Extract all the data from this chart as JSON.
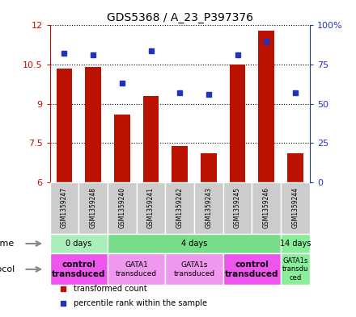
{
  "title": "GDS5368 / A_23_P397376",
  "samples": [
    "GSM1359247",
    "GSM1359248",
    "GSM1359240",
    "GSM1359241",
    "GSM1359242",
    "GSM1359243",
    "GSM1359245",
    "GSM1359246",
    "GSM1359244"
  ],
  "transformed_counts": [
    10.35,
    10.4,
    8.6,
    9.3,
    7.4,
    7.1,
    10.5,
    11.8,
    7.1
  ],
  "percentile_ranks": [
    82,
    81,
    63,
    84,
    57,
    56,
    81,
    90,
    57
  ],
  "ylim": [
    6,
    12
  ],
  "y2lim": [
    0,
    100
  ],
  "yticks": [
    6,
    7.5,
    9,
    10.5,
    12
  ],
  "ytick_labels": [
    "6",
    "7.5",
    "9",
    "10.5",
    "12"
  ],
  "y2ticks": [
    0,
    25,
    50,
    75,
    100
  ],
  "y2tick_labels": [
    "0",
    "25",
    "50",
    "75",
    "100%"
  ],
  "bar_color": "#BB1100",
  "dot_color": "#2233BB",
  "bar_width": 0.55,
  "time_groups": [
    {
      "label": "0 days",
      "start": 0,
      "end": 2,
      "color": "#AAEEBB"
    },
    {
      "label": "4 days",
      "start": 2,
      "end": 8,
      "color": "#77DD88"
    },
    {
      "label": "14 days",
      "start": 8,
      "end": 9,
      "color": "#88EE99"
    }
  ],
  "protocol_groups": [
    {
      "label": "control\ntransduced",
      "start": 0,
      "end": 2,
      "color": "#EE55EE",
      "bold": true,
      "fontsize": 7.5
    },
    {
      "label": "GATA1\ntransduced",
      "start": 2,
      "end": 4,
      "color": "#EE99EE",
      "bold": false,
      "fontsize": 6.5
    },
    {
      "label": "GATA1s\ntransduced",
      "start": 4,
      "end": 6,
      "color": "#EE99EE",
      "bold": false,
      "fontsize": 6.5
    },
    {
      "label": "control\ntransduced",
      "start": 6,
      "end": 8,
      "color": "#EE55EE",
      "bold": true,
      "fontsize": 7.5
    },
    {
      "label": "GATA1s\ntransdu\nced",
      "start": 8,
      "end": 9,
      "color": "#88EE99",
      "bold": false,
      "fontsize": 6.0
    }
  ],
  "legend_items": [
    {
      "label": "transformed count",
      "color": "#BB1100"
    },
    {
      "label": "percentile rank within the sample",
      "color": "#2233BB"
    }
  ],
  "sample_box_color": "#CCCCCC",
  "fig_width": 4.4,
  "fig_height": 3.93,
  "dpi": 100
}
